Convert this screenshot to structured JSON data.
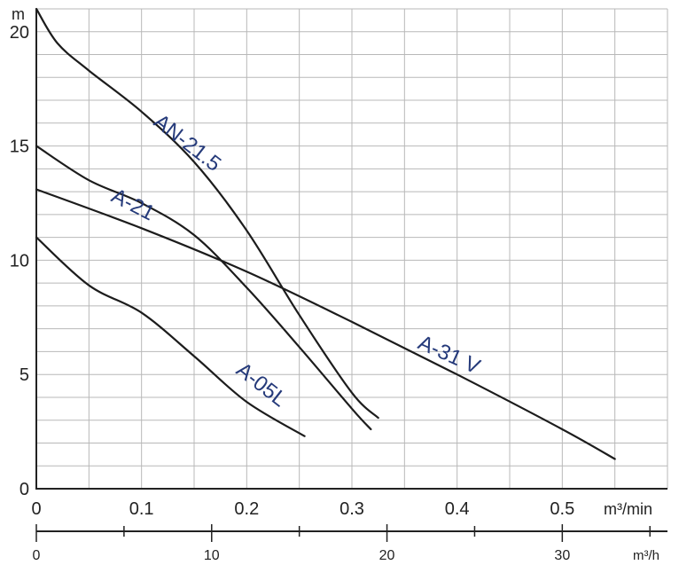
{
  "chart_data": {
    "type": "line",
    "y_unit": "m",
    "x_unit": "m³/min",
    "x2_unit": "m³/h",
    "xlim": [
      0,
      0.6
    ],
    "ylim": [
      0,
      21
    ],
    "x_ticks": [
      0,
      0.1,
      0.2,
      0.3,
      0.4,
      0.5
    ],
    "x_tick_labels": [
      "0",
      "0.1",
      "0.2",
      "0.3",
      "0.4",
      "0.5"
    ],
    "y_ticks": [
      0,
      5,
      10,
      15,
      20
    ],
    "y_tick_labels": [
      "0",
      "5",
      "10",
      "15",
      "20"
    ],
    "x2_ticks": [
      0,
      10,
      20,
      30
    ],
    "x2_tick_labels": [
      "0",
      "10",
      "20",
      "30"
    ],
    "grid": true,
    "series": [
      {
        "name": "AN-21.5",
        "x": [
          0,
          0.02,
          0.05,
          0.1,
          0.15,
          0.2,
          0.25,
          0.3,
          0.325
        ],
        "y": [
          21,
          19.5,
          18.3,
          16.5,
          14.3,
          11.3,
          7.6,
          4.2,
          3.1
        ]
      },
      {
        "name": "A-21",
        "x": [
          0,
          0.05,
          0.1,
          0.15,
          0.2,
          0.25,
          0.3,
          0.318
        ],
        "y": [
          15,
          13.5,
          12.5,
          11.1,
          8.8,
          6.2,
          3.5,
          2.6
        ]
      },
      {
        "name": "A-31 V",
        "x": [
          0,
          0.1,
          0.2,
          0.3,
          0.4,
          0.5,
          0.55
        ],
        "y": [
          13.1,
          11.4,
          9.5,
          7.3,
          5.0,
          2.6,
          1.3
        ]
      },
      {
        "name": "A-05L",
        "x": [
          0,
          0.05,
          0.1,
          0.15,
          0.2,
          0.255
        ],
        "y": [
          11,
          8.9,
          7.7,
          5.8,
          3.8,
          2.3
        ]
      }
    ]
  }
}
